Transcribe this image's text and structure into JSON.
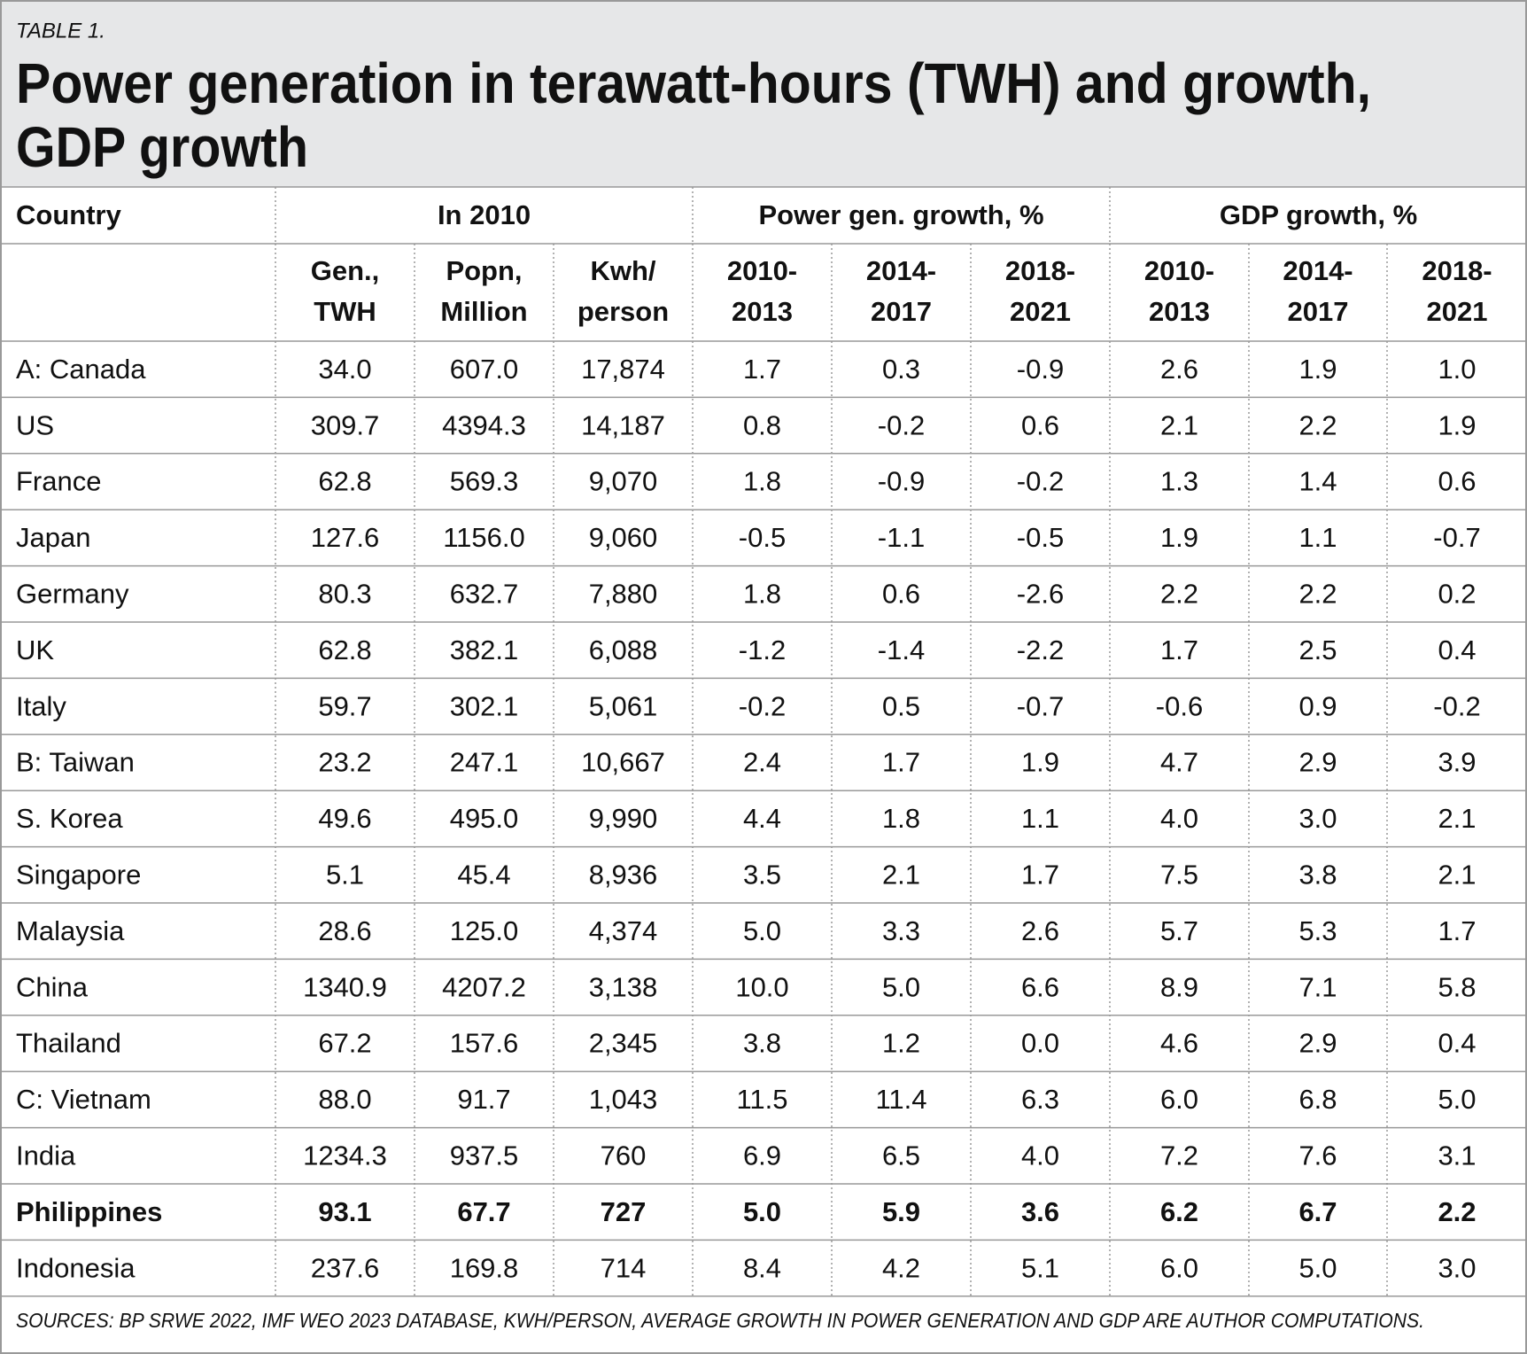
{
  "header": {
    "label": "TABLE 1.",
    "title": [
      "Power generation in terawatt-hours (TWH) and growth,",
      "GDP growth"
    ]
  },
  "table": {
    "group_headers": [
      "Country",
      "In 2010",
      "Power gen. growth, %",
      "GDP growth, %"
    ],
    "column_headers": [
      [
        "Gen.,",
        "TWH"
      ],
      [
        "Popn,",
        "Million"
      ],
      [
        "Kwh/",
        "person"
      ],
      [
        "2010-",
        "2013"
      ],
      [
        "2014-",
        "2017"
      ],
      [
        "2018-",
        "2021"
      ],
      [
        "2010-",
        "2013"
      ],
      [
        "2014-",
        "2017"
      ],
      [
        "2018-",
        "2021"
      ]
    ],
    "rows": [
      [
        "A: Canada",
        "34.0",
        "607.0",
        "17,874",
        "1.7",
        "0.3",
        "-0.9",
        "2.6",
        "1.9",
        "1.0"
      ],
      [
        "US",
        "309.7",
        "4394.3",
        "14,187",
        "0.8",
        "-0.2",
        "0.6",
        "2.1",
        "2.2",
        "1.9"
      ],
      [
        "France",
        "62.8",
        "569.3",
        "9,070",
        "1.8",
        "-0.9",
        "-0.2",
        "1.3",
        "1.4",
        "0.6"
      ],
      [
        "Japan",
        "127.6",
        "1156.0",
        "9,060",
        "-0.5",
        "-1.1",
        "-0.5",
        "1.9",
        "1.1",
        "-0.7"
      ],
      [
        "Germany",
        "80.3",
        "632.7",
        "7,880",
        "1.8",
        "0.6",
        "-2.6",
        "2.2",
        "2.2",
        "0.2"
      ],
      [
        "UK",
        "62.8",
        "382.1",
        "6,088",
        "-1.2",
        "-1.4",
        "-2.2",
        "1.7",
        "2.5",
        "0.4"
      ],
      [
        "Italy",
        "59.7",
        "302.1",
        "5,061",
        "-0.2",
        "0.5",
        "-0.7",
        "-0.6",
        "0.9",
        "-0.2"
      ],
      [
        "B: Taiwan",
        "23.2",
        "247.1",
        "10,667",
        "2.4",
        "1.7",
        "1.9",
        "4.7",
        "2.9",
        "3.9"
      ],
      [
        "S. Korea",
        "49.6",
        "495.0",
        "9,990",
        "4.4",
        "1.8",
        "1.1",
        "4.0",
        "3.0",
        "2.1"
      ],
      [
        "Singapore",
        "5.1",
        "45.4",
        "8,936",
        "3.5",
        "2.1",
        "1.7",
        "7.5",
        "3.8",
        "2.1"
      ],
      [
        "Malaysia",
        "28.6",
        "125.0",
        "4,374",
        "5.0",
        "3.3",
        "2.6",
        "5.7",
        "5.3",
        "1.7"
      ],
      [
        "China",
        "1340.9",
        "4207.2",
        "3,138",
        "10.0",
        "5.0",
        "6.6",
        "8.9",
        "7.1",
        "5.8"
      ],
      [
        "Thailand",
        "67.2",
        "157.6",
        "2,345",
        "3.8",
        "1.2",
        "0.0",
        "4.6",
        "2.9",
        "0.4"
      ],
      [
        "C: Vietnam",
        "88.0",
        "91.7",
        "1,043",
        "11.5",
        "11.4",
        "6.3",
        "6.0",
        "6.8",
        "5.0"
      ],
      [
        "India",
        "1234.3",
        "937.5",
        "760",
        "6.9",
        "6.5",
        "4.0",
        "7.2",
        "7.6",
        "3.1"
      ],
      [
        "Philippines",
        "93.1",
        "67.7",
        "727",
        "5.0",
        "5.9",
        "3.6",
        "6.2",
        "6.7",
        "2.2"
      ],
      [
        "Indonesia",
        "237.6",
        "169.8",
        "714",
        "8.4",
        "4.2",
        "5.1",
        "6.0",
        "5.0",
        "3.0"
      ]
    ]
  },
  "footer": {
    "source": "SOURCES: BP SRWE 2022, IMF WEO 2023 DATABASE, KWH/PERSON, AVERAGE GROWTH IN POWER GENERATION AND GDP ARE AUTHOR COMPUTATIONS."
  }
}
